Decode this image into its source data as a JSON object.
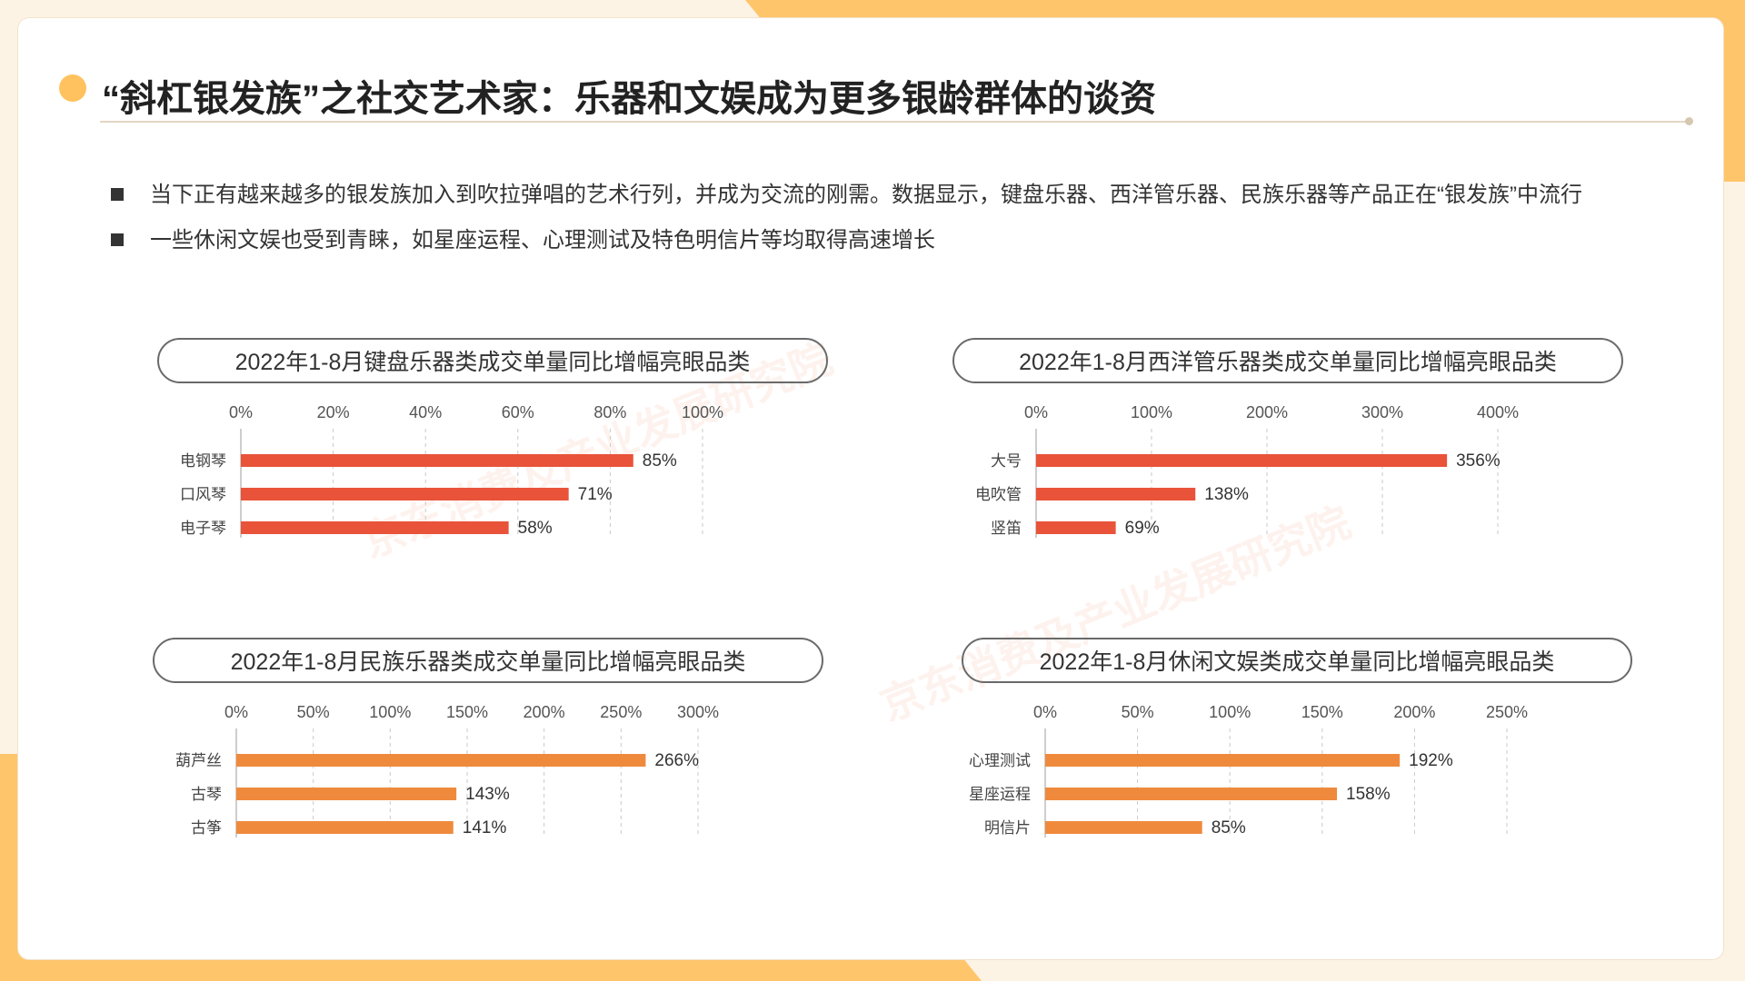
{
  "title": "“斜杠银发族”之社交艺术家：乐器和文娱成为更多银龄群体的谈资",
  "bullets": [
    "当下正有越来越多的银发族加入到吹拉弹唱的艺术行列，并成为交流的刚需。数据显示，键盘乐器、西洋管乐器、民族乐器等产品正在“银发族”中流行",
    "一些休闲文娱也受到青睐，如星座运程、心理测试及特色明信片等均取得高速增长"
  ],
  "watermark": "京东消费及产业发展研究院",
  "colors": {
    "accent_dot": "#ffc25e",
    "bar_red": "#e8533a",
    "bar_orange": "#ef8a3d",
    "grid": "#c9c9c9"
  },
  "chart_data": [
    {
      "type": "bar",
      "orientation": "horizontal",
      "title": "2022年1-8月键盘乐器类成交单量同比增幅亮眼品类",
      "categories": [
        "电钢琴",
        "口风琴",
        "电子琴"
      ],
      "values": [
        85,
        71,
        58
      ],
      "value_labels": [
        "85%",
        "71%",
        "58%"
      ],
      "xlim": [
        0,
        100
      ],
      "ticks": [
        "0%",
        "20%",
        "40%",
        "60%",
        "80%",
        "100%"
      ],
      "color": "#e8533a",
      "grid": true
    },
    {
      "type": "bar",
      "orientation": "horizontal",
      "title": "2022年1-8月西洋管乐器类成交单量同比增幅亮眼品类",
      "categories": [
        "大号",
        "电吹管",
        "竖笛"
      ],
      "values": [
        356,
        138,
        69
      ],
      "value_labels": [
        "356%",
        "138%",
        "69%"
      ],
      "xlim": [
        0,
        400
      ],
      "ticks": [
        "0%",
        "100%",
        "200%",
        "300%",
        "400%"
      ],
      "color": "#e8533a",
      "grid": true
    },
    {
      "type": "bar",
      "orientation": "horizontal",
      "title": "2022年1-8月民族乐器类成交单量同比增幅亮眼品类",
      "categories": [
        "葫芦丝",
        "古琴",
        "古筝"
      ],
      "values": [
        266,
        143,
        141
      ],
      "value_labels": [
        "266%",
        "143%",
        "141%"
      ],
      "xlim": [
        0,
        300
      ],
      "ticks": [
        "0%",
        "50%",
        "100%",
        "150%",
        "200%",
        "250%",
        "300%"
      ],
      "color": "#ef8a3d",
      "grid": true
    },
    {
      "type": "bar",
      "orientation": "horizontal",
      "title": "2022年1-8月休闲文娱类成交单量同比增幅亮眼品类",
      "categories": [
        "心理测试",
        "星座运程",
        "明信片"
      ],
      "values": [
        192,
        158,
        85
      ],
      "value_labels": [
        "192%",
        "158%",
        "85%"
      ],
      "xlim": [
        0,
        250
      ],
      "ticks": [
        "0%",
        "50%",
        "100%",
        "150%",
        "200%",
        "250%"
      ],
      "color": "#ef8a3d",
      "grid": true
    }
  ]
}
